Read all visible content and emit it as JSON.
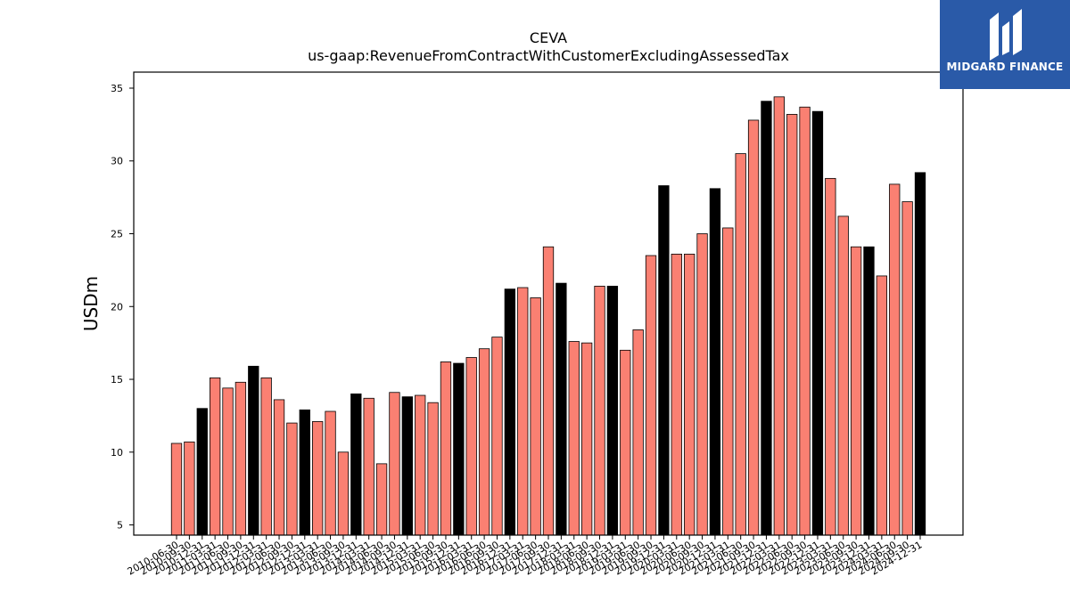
{
  "chart_data": {
    "type": "bar",
    "title": "CEVA",
    "subtitle": "us-gaap:RevenueFromContractWithCustomerExcludingAssessedTax",
    "xlabel": "",
    "ylabel": "USDm",
    "ylim": [
      4.3,
      36.1
    ],
    "yticks": [
      5,
      10,
      15,
      20,
      25,
      30,
      35
    ],
    "grid": false,
    "colors": {
      "quarter": "#fa8072",
      "year_end": "#000000",
      "edge": "#000000"
    },
    "categories": [
      "2010-06-30",
      "2010-09-30",
      "2010-12-31",
      "2011-03-31",
      "2011-06-30",
      "2011-09-30",
      "2011-12-31",
      "2012-03-31",
      "2012-06-30",
      "2012-09-30",
      "2012-12-31",
      "2013-03-31",
      "2013-06-30",
      "2013-09-30",
      "2013-12-31",
      "2014-03-31",
      "2014-06-30",
      "2014-09-30",
      "2014-12-31",
      "2015-03-31",
      "2015-06-30",
      "2015-09-30",
      "2015-12-31",
      "2016-03-31",
      "2016-06-30",
      "2016-09-30",
      "2016-12-31",
      "2017-03-31",
      "2017-06-30",
      "2017-09-30",
      "2017-12-31",
      "2018-03-31",
      "2018-06-30",
      "2018-09-30",
      "2018-12-31",
      "2019-03-31",
      "2019-06-30",
      "2019-09-30",
      "2019-12-31",
      "2020-03-31",
      "2020-06-30",
      "2020-09-30",
      "2020-12-31",
      "2021-03-31",
      "2021-06-30",
      "2021-09-30",
      "2021-12-31",
      "2022-03-31",
      "2022-06-30",
      "2022-09-30",
      "2022-12-31",
      "2023-03-31",
      "2023-06-30",
      "2023-09-30",
      "2023-12-31",
      "2024-03-31",
      "2024-06-30",
      "2024-09-30",
      "2024-12-31"
    ],
    "values": [
      10.6,
      10.7,
      13.0,
      15.1,
      14.4,
      14.8,
      15.9,
      15.1,
      13.6,
      12.0,
      12.9,
      12.1,
      12.8,
      10.0,
      14.0,
      13.7,
      9.2,
      14.1,
      13.8,
      13.9,
      13.4,
      16.2,
      16.1,
      16.5,
      17.1,
      17.9,
      21.2,
      21.3,
      20.6,
      24.1,
      21.6,
      17.6,
      17.5,
      21.4,
      21.4,
      17.0,
      18.4,
      23.5,
      28.3,
      23.6,
      23.6,
      25.0,
      28.1,
      25.4,
      30.5,
      32.8,
      34.1,
      34.4,
      33.2,
      33.7,
      33.4,
      28.8,
      26.2,
      24.1,
      24.1,
      22.1,
      28.4,
      27.2,
      29.2
    ]
  },
  "logo": {
    "text": "MIDGARD FINANCE"
  }
}
